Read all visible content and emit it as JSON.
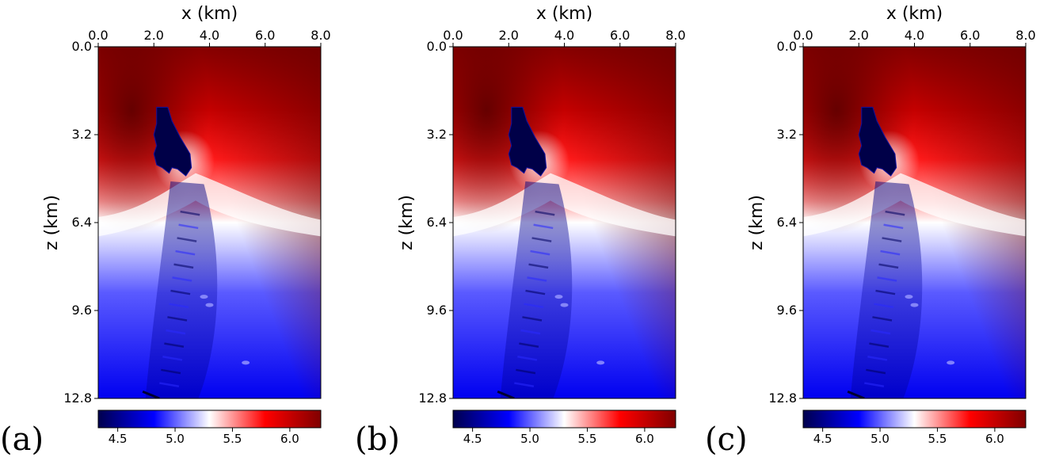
{
  "chart_data": [
    {
      "type": "heatmap",
      "panel_label": "(a)",
      "xlabel": "x (km)",
      "ylabel": "z (km)",
      "xlim": [
        0,
        8
      ],
      "ylim": [
        0,
        12.8
      ],
      "x_ticks": [
        "0.0",
        "2.0",
        "4.0",
        "6.0",
        "8.0"
      ],
      "y_ticks": [
        "0.0",
        "3.2",
        "6.4",
        "9.6",
        "12.8"
      ],
      "colorbar": {
        "ticks": [
          "4.5",
          "5.0",
          "5.5",
          "6.0"
        ],
        "range": [
          4.33,
          6.27
        ],
        "colormap": "seismic"
      }
    },
    {
      "type": "heatmap",
      "panel_label": "(b)",
      "xlabel": "x (km)",
      "ylabel": "z (km)",
      "xlim": [
        0,
        8
      ],
      "ylim": [
        0,
        12.8
      ],
      "x_ticks": [
        "0.0",
        "2.0",
        "4.0",
        "6.0",
        "8.0"
      ],
      "y_ticks": [
        "0.0",
        "3.2",
        "6.4",
        "9.6",
        "12.8"
      ],
      "colorbar": {
        "ticks": [
          "4.5",
          "5.0",
          "5.5",
          "6.0"
        ],
        "range": [
          4.33,
          6.27
        ],
        "colormap": "seismic"
      }
    },
    {
      "type": "heatmap",
      "panel_label": "(c)",
      "xlabel": "x (km)",
      "ylabel": "z (km)",
      "xlim": [
        0,
        8
      ],
      "ylim": [
        0,
        12.8
      ],
      "x_ticks": [
        "0.0",
        "2.0",
        "4.0",
        "6.0",
        "8.0"
      ],
      "y_ticks": [
        "0.0",
        "3.2",
        "6.4",
        "9.6",
        "12.8"
      ],
      "colorbar": {
        "ticks": [
          "4.5",
          "5.0",
          "5.5",
          "6.0"
        ],
        "range": [
          4.33,
          6.27
        ],
        "colormap": "seismic"
      }
    }
  ],
  "colors": {
    "dark_blue": "#00004d",
    "blue": "#0000ff",
    "white": "#ffffff",
    "red": "#ff0000",
    "dark_red": "#800000"
  }
}
